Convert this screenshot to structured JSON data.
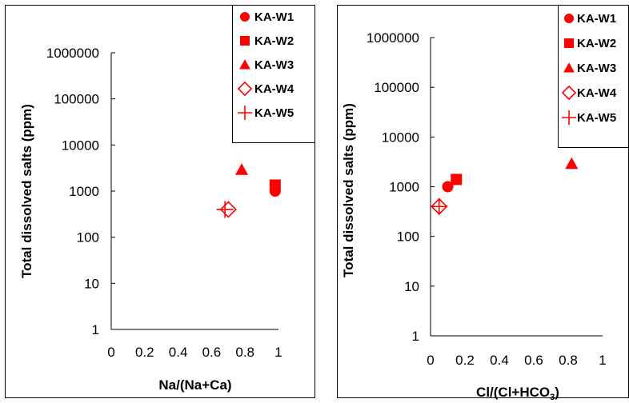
{
  "chart_data": [
    {
      "type": "scatter",
      "xlabel": "Na/(Na+Ca)",
      "ylabel": "Total dissolved salts (ppm)",
      "xlim": [
        0,
        1
      ],
      "ylim": [
        1,
        1000000
      ],
      "y_scale": "log",
      "x_ticks": [
        "0",
        "0.2",
        "0.4",
        "0.6",
        "0.8",
        "1"
      ],
      "y_ticks": [
        "1",
        "10",
        "100",
        "1000",
        "10000",
        "100000",
        "1000000"
      ],
      "legend_position": "top-right",
      "series": [
        {
          "name": "KA-W1",
          "marker": "circle",
          "x": [
            0.98
          ],
          "y": [
            1000
          ]
        },
        {
          "name": "KA-W2",
          "marker": "square",
          "x": [
            0.98
          ],
          "y": [
            1350
          ]
        },
        {
          "name": "KA-W3",
          "marker": "triangle",
          "x": [
            0.78
          ],
          "y": [
            2900
          ]
        },
        {
          "name": "KA-W4",
          "marker": "diamond-open",
          "x": [
            0.7
          ],
          "y": [
            400
          ]
        },
        {
          "name": "KA-W5",
          "marker": "plus",
          "x": [
            0.68
          ],
          "y": [
            400
          ]
        }
      ],
      "color": "#ff0000"
    },
    {
      "type": "scatter",
      "xlabel_main": "Cl/(Cl+HCO",
      "xlabel_sub": "3",
      "xlabel_end": ")",
      "ylabel": "Total dissolved salts (ppm)",
      "xlim": [
        0,
        1
      ],
      "ylim": [
        1,
        1000000
      ],
      "y_scale": "log",
      "x_ticks": [
        "0",
        "0.2",
        "0.4",
        "0.6",
        "0.8",
        "1"
      ],
      "y_ticks": [
        "1",
        "10",
        "100",
        "1000",
        "10000",
        "100000",
        "1000000"
      ],
      "legend_position": "top-right",
      "series": [
        {
          "name": "KA-W1",
          "marker": "circle",
          "x": [
            0.1
          ],
          "y": [
            1000
          ]
        },
        {
          "name": "KA-W2",
          "marker": "square",
          "x": [
            0.15
          ],
          "y": [
            1400
          ]
        },
        {
          "name": "KA-W3",
          "marker": "triangle",
          "x": [
            0.82
          ],
          "y": [
            2900
          ]
        },
        {
          "name": "KA-W4",
          "marker": "diamond-open",
          "x": [
            0.05
          ],
          "y": [
            400
          ]
        },
        {
          "name": "KA-W5",
          "marker": "plus",
          "x": [
            0.05
          ],
          "y": [
            400
          ]
        }
      ],
      "color": "#ff0000"
    }
  ]
}
